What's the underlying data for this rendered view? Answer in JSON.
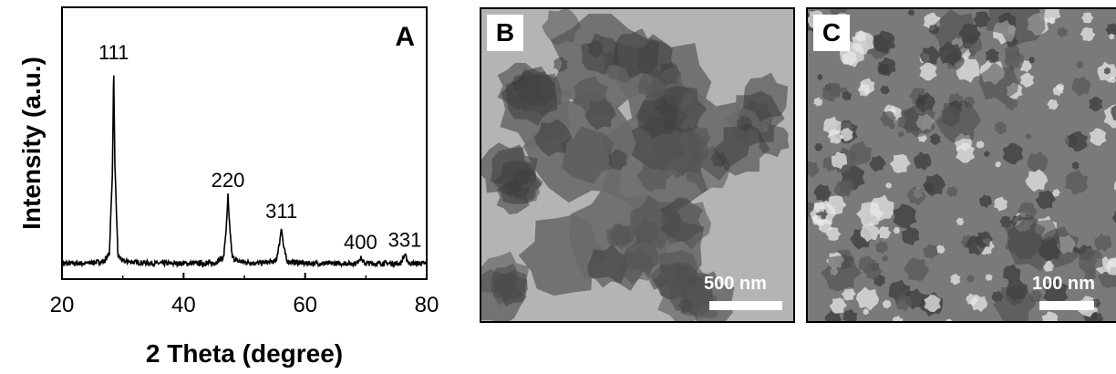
{
  "chart_data": {
    "type": "line",
    "panel_label": "A",
    "xlabel": "2 Theta (degree)",
    "ylabel": "Intensity (a.u.)",
    "xlim": [
      20,
      80
    ],
    "xticks": [
      20,
      40,
      60,
      80
    ],
    "y_tick_labels": false,
    "grid": false,
    "series": [
      {
        "x": [
          20,
          24,
          27,
          27.8,
          28.3,
          28.5,
          28.7,
          29.2,
          30,
          35,
          40,
          45,
          46.6,
          47.1,
          47.3,
          47.5,
          48,
          49,
          52,
          55.2,
          55.8,
          56.1,
          56.4,
          57,
          60,
          65,
          68.5,
          69.1,
          69.7,
          72,
          75.7,
          76.4,
          77.1,
          80
        ],
        "y": [
          5,
          5,
          6,
          10,
          50,
          100,
          52,
          9,
          6,
          5,
          5,
          5,
          8,
          25,
          38,
          26,
          8,
          6,
          5,
          6,
          15,
          23,
          14,
          6,
          5,
          5,
          5,
          8,
          5,
          5,
          5,
          9,
          5,
          5
        ]
      }
    ],
    "annotations": [
      {
        "text": "111",
        "x": 28.5,
        "y": 100
      },
      {
        "text": "220",
        "x": 47.3,
        "y": 38
      },
      {
        "text": "311",
        "x": 56.1,
        "y": 23
      },
      {
        "text": "400",
        "x": 69.1,
        "y": 8
      },
      {
        "text": "331",
        "x": 76.4,
        "y": 9
      }
    ]
  },
  "tem_panels": [
    {
      "label": "B",
      "scale_bar_text": "500 nm"
    },
    {
      "label": "C",
      "scale_bar_text": "100 nm"
    }
  ]
}
